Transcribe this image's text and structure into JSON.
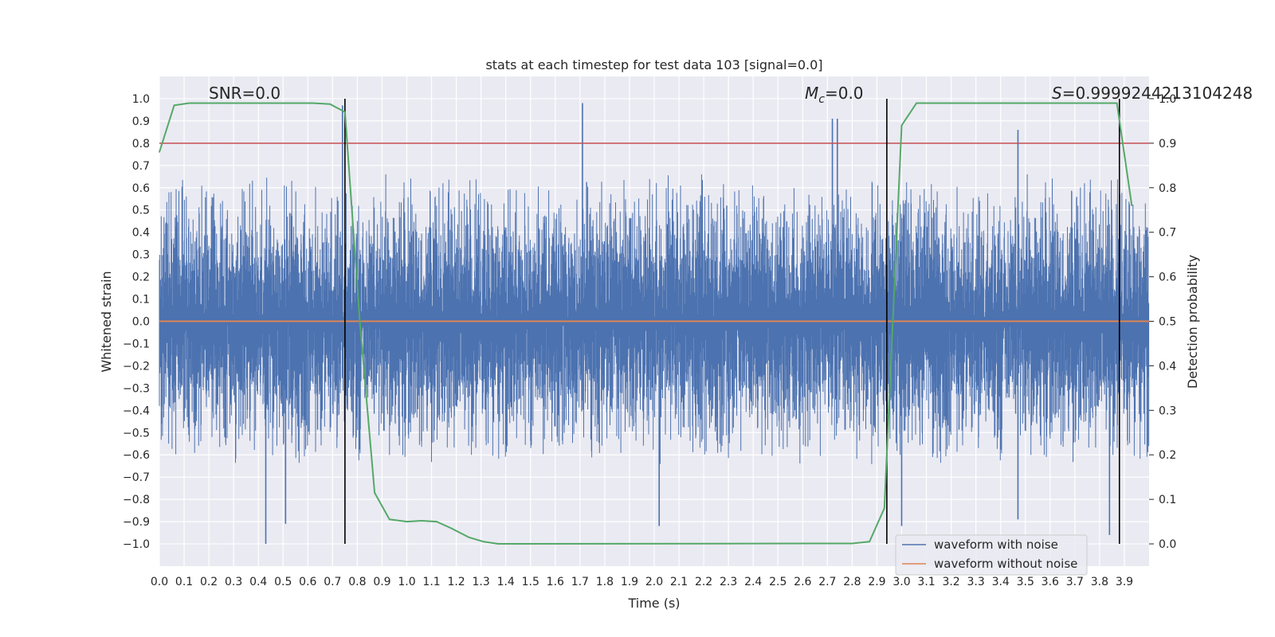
{
  "chart_data": {
    "type": "line",
    "title": "stats at each timestep for test data 103 [signal=0.0]",
    "xlabel": "Time (s)",
    "ylabel": "Whitened strain",
    "ylabel_right": "Detection probability",
    "xlim": [
      0.0,
      4.0
    ],
    "ylim": [
      -1.1,
      1.1
    ],
    "ylim_right": [
      -0.05,
      1.05
    ],
    "x_ticks": [
      "0.0",
      "0.1",
      "0.2",
      "0.3",
      "0.4",
      "0.5",
      "0.6",
      "0.7",
      "0.8",
      "0.9",
      "1.0",
      "1.1",
      "1.2",
      "1.3",
      "1.4",
      "1.5",
      "1.6",
      "1.7",
      "1.8",
      "1.9",
      "2.0",
      "2.1",
      "2.2",
      "2.3",
      "2.4",
      "2.5",
      "2.6",
      "2.7",
      "2.8",
      "2.9",
      "3.0",
      "3.1",
      "3.2",
      "3.3",
      "3.4",
      "3.5",
      "3.6",
      "3.7",
      "3.8",
      "3.9"
    ],
    "y_ticks": [
      "-1.0",
      "-0.9",
      "-0.8",
      "-0.7",
      "-0.6",
      "-0.5",
      "-0.4",
      "-0.3",
      "-0.2",
      "-0.1",
      "0.0",
      "0.1",
      "0.2",
      "0.3",
      "0.4",
      "0.5",
      "0.6",
      "0.7",
      "0.8",
      "0.9",
      "1.0"
    ],
    "y_ticks_right": [
      "0.0",
      "0.1",
      "0.2",
      "0.3",
      "0.4",
      "0.5",
      "0.6",
      "0.7",
      "0.8",
      "0.9",
      "1.0"
    ],
    "grid": true,
    "legend": {
      "placement": "bottom-right",
      "entries": [
        {
          "label": "waveform with noise",
          "color": "#4c72b0"
        },
        {
          "label": "waveform without noise",
          "color": "#dd8452"
        }
      ]
    },
    "annotations": {
      "snr": "SNR=0.0",
      "mc": "M",
      "mc_sub": "c",
      "mc_value": "=0.0",
      "s": "S",
      "s_value": "=0.9999244213104248"
    },
    "series": [
      {
        "name": "waveform with noise",
        "color": "#4c72b0",
        "description": "whitened noisy strain sampled at high rate, roughly uniform noise between about -0.6 and 0.6 with spikes",
        "spikes": [
          {
            "x": 0.43,
            "y": -1.0
          },
          {
            "x": 0.51,
            "y": -0.91
          },
          {
            "x": 0.74,
            "y": 0.97
          },
          {
            "x": 1.71,
            "y": 0.98
          },
          {
            "x": 2.02,
            "y": -0.92
          },
          {
            "x": 2.72,
            "y": 0.91
          },
          {
            "x": 2.74,
            "y": 0.91
          },
          {
            "x": 3.0,
            "y": -0.92
          },
          {
            "x": 3.47,
            "y": 0.86
          },
          {
            "x": 3.47,
            "y": -0.89
          },
          {
            "x": 3.84,
            "y": -0.96
          }
        ]
      },
      {
        "name": "waveform without noise",
        "color": "#dd8452",
        "x": [
          0.0,
          4.0
        ],
        "y": [
          0.0,
          0.0
        ]
      },
      {
        "name": "detection probability",
        "axis": "right",
        "color": "#55a868",
        "x": [
          0.0,
          0.06,
          0.12,
          0.19,
          0.25,
          0.31,
          0.37,
          0.43,
          0.5,
          0.56,
          0.62,
          0.69,
          0.75,
          0.81,
          0.87,
          0.93,
          1.0,
          1.06,
          1.12,
          1.18,
          1.25,
          1.31,
          1.37,
          2.8,
          2.87,
          2.93,
          3.0,
          3.06,
          3.12,
          3.87,
          3.93
        ],
        "y": [
          0.88,
          0.985,
          0.99,
          0.99,
          0.99,
          0.99,
          0.99,
          0.99,
          0.99,
          0.99,
          0.99,
          0.988,
          0.97,
          0.5,
          0.115,
          0.055,
          0.05,
          0.052,
          0.05,
          0.035,
          0.015,
          0.005,
          0.0,
          0.001,
          0.005,
          0.08,
          0.94,
          0.99,
          0.99,
          0.99,
          0.76
        ]
      }
    ],
    "threshold": {
      "axis": "right",
      "value": 0.9,
      "color": "#c44e52"
    },
    "vertical_lines": [
      0.75,
      2.94,
      3.88
    ]
  }
}
